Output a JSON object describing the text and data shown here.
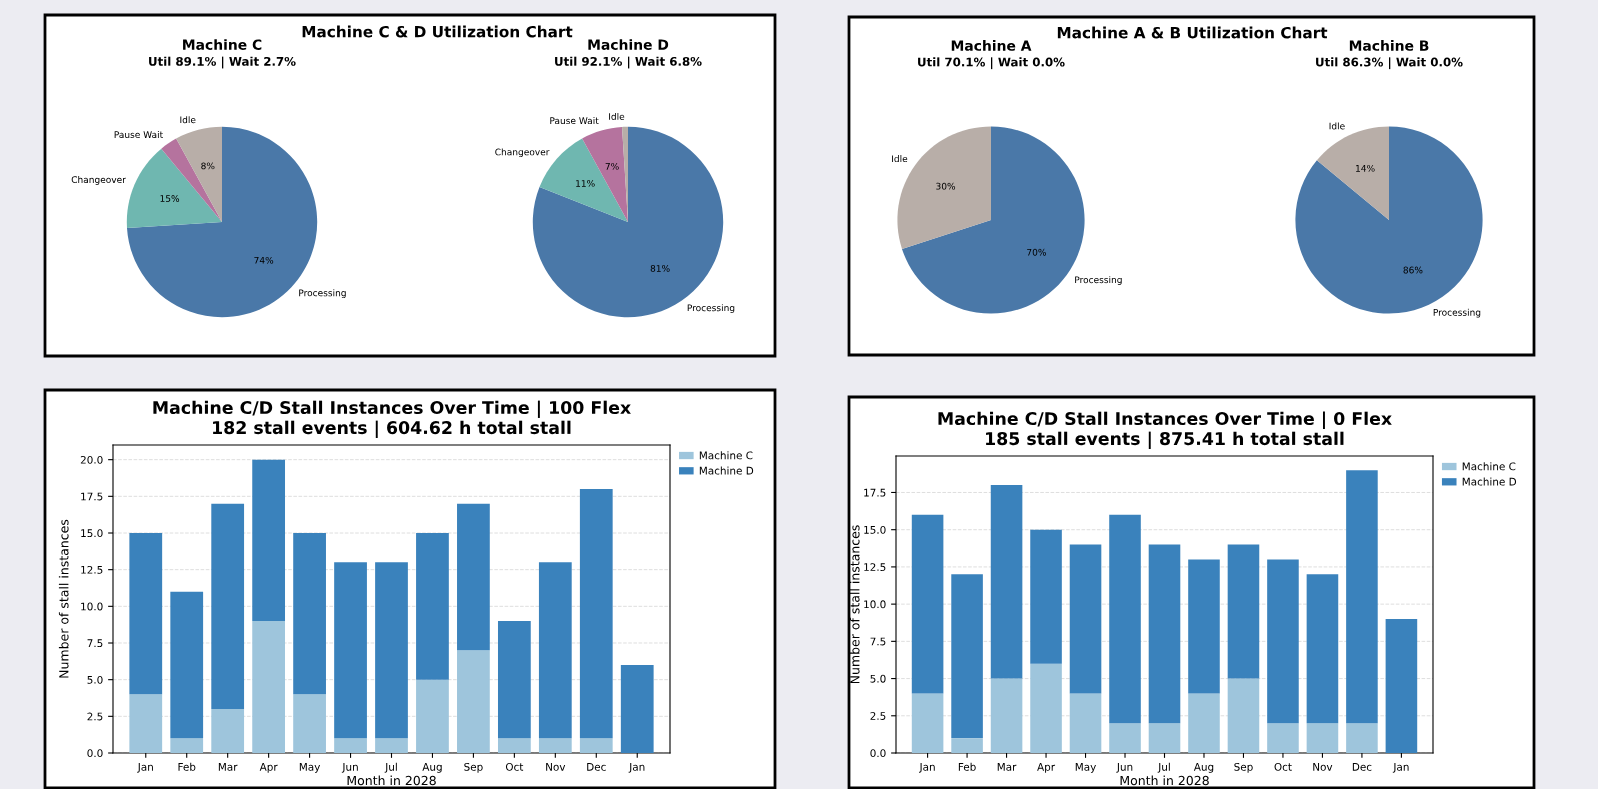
{
  "chart_data": [
    {
      "type": "pie",
      "title": "Machine C",
      "subtitle": "Util 89.1% | Wait 2.7%",
      "annotations": [
        "Machine C & D Utilization Chart"
      ],
      "categories": [
        "Processing",
        "Changeover",
        "Pause Wait",
        "Idle"
      ],
      "values": [
        74,
        15,
        3,
        8
      ],
      "colors": [
        "#4a78a8",
        "#6fb7b0",
        "#b5739e",
        "#b8aea8"
      ],
      "value_labels": [
        "74%",
        "15%",
        null,
        "8%"
      ]
    },
    {
      "type": "pie",
      "title": "Machine D",
      "subtitle": "Util 92.1% | Wait 6.8%",
      "categories": [
        "Processing",
        "Changeover",
        "Pause Wait",
        "Idle"
      ],
      "values": [
        81,
        11,
        7,
        1
      ],
      "colors": [
        "#4a78a8",
        "#6fb7b0",
        "#b5739e",
        "#b8aea8"
      ],
      "value_labels": [
        "81%",
        "11%",
        "7%",
        null
      ]
    },
    {
      "type": "pie",
      "title": "Machine A",
      "subtitle": "Util 70.1% | Wait 0.0%",
      "annotations": [
        "Machine A & B Utilization Chart"
      ],
      "categories": [
        "Processing",
        "Idle"
      ],
      "values": [
        70,
        30
      ],
      "colors": [
        "#4a78a8",
        "#b8aea8"
      ],
      "value_labels": [
        "70%",
        "30%"
      ]
    },
    {
      "type": "pie",
      "title": "Machine B",
      "subtitle": "Util 86.3% | Wait 0.0%",
      "categories": [
        "Processing",
        "Idle"
      ],
      "values": [
        86,
        14
      ],
      "colors": [
        "#4a78a8",
        "#b8aea8"
      ],
      "value_labels": [
        "86%",
        "14%"
      ]
    },
    {
      "type": "bar",
      "stacked": true,
      "title": "Machine C/D Stall Instances Over Time | 100 Flex",
      "subtitle": "182 stall events | 604.62 h total stall",
      "xlabel": "Month in 2028",
      "ylabel": "Number of stall instances",
      "categories": [
        "Jan",
        "Feb",
        "Mar",
        "Apr",
        "May",
        "Jun",
        "Jul",
        "Aug",
        "Sep",
        "Oct",
        "Nov",
        "Dec",
        "Jan"
      ],
      "ylim": [
        0,
        21
      ],
      "yticks": [
        {
          "value": 0,
          "label": "0.0"
        },
        2.5,
        {
          "value": 5,
          "label": "5.0"
        },
        7.5,
        {
          "value": 10,
          "label": "10.0"
        },
        12.5,
        {
          "value": 15,
          "label": "15.0"
        },
        17.5,
        {
          "value": 20,
          "label": "20.0"
        }
      ],
      "grid": "y",
      "legend": "right",
      "series": [
        {
          "name": "Machine C",
          "color": "#9ec5dc",
          "values": [
            4,
            1,
            3,
            9,
            4,
            1,
            1,
            5,
            7,
            1,
            1,
            1,
            0
          ]
        },
        {
          "name": "Machine D",
          "color": "#3a82bc",
          "values": [
            11,
            10,
            14,
            11,
            11,
            12,
            12,
            10,
            10,
            8,
            12,
            17,
            6
          ]
        }
      ]
    },
    {
      "type": "bar",
      "stacked": true,
      "title": "Machine C/D Stall Instances Over Time | 0 Flex",
      "subtitle": "185 stall events | 875.41 h total stall",
      "xlabel": "Month in 2028",
      "ylabel": "Number of stall instances",
      "categories": [
        "Jan",
        "Feb",
        "Mar",
        "Apr",
        "May",
        "Jun",
        "Jul",
        "Aug",
        "Sep",
        "Oct",
        "Nov",
        "Dec",
        "Jan"
      ],
      "ylim": [
        0,
        19.95
      ],
      "yticks": [
        {
          "value": 0,
          "label": "0.0"
        },
        2.5,
        {
          "value": 5,
          "label": "5.0"
        },
        7.5,
        {
          "value": 10,
          "label": "10.0"
        },
        12.5,
        {
          "value": 15,
          "label": "15.0"
        },
        17.5
      ],
      "grid": "y",
      "legend": "right",
      "series": [
        {
          "name": "Machine C",
          "color": "#9ec5dc",
          "values": [
            4,
            1,
            5,
            6,
            4,
            2,
            2,
            4,
            5,
            2,
            2,
            2,
            0
          ]
        },
        {
          "name": "Machine D",
          "color": "#3a82bc",
          "values": [
            12,
            11,
            13,
            9,
            10,
            14,
            12,
            9,
            9,
            11,
            10,
            17,
            9
          ]
        }
      ]
    }
  ]
}
